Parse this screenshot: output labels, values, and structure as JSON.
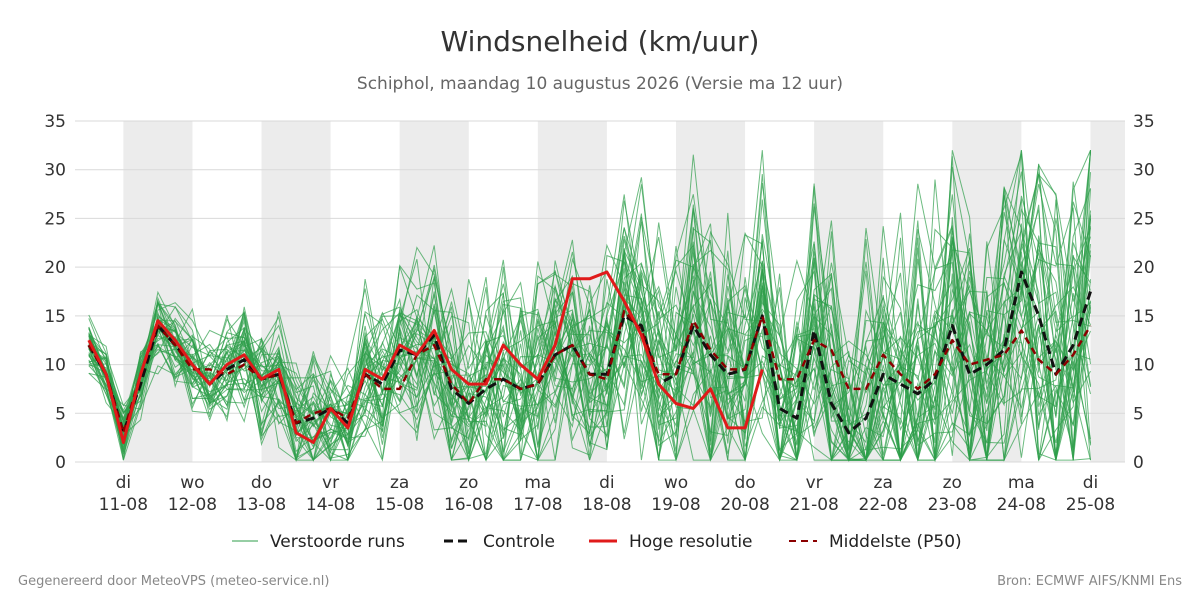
{
  "title": "Windsnelheid (km/uur)",
  "subtitle": "Schiphol, maandag 10 augustus 2026 (Versie ma 12 uur)",
  "footer": {
    "left": "Gegenereerd door MeteoVPS (meteo-service.nl)",
    "right": "Bron: ECMWF AIFS/KNMI Ens"
  },
  "colors": {
    "ensemble": "#2e9e4a",
    "control": "#111111",
    "highres": "#e01a1a",
    "median": "#8b0000",
    "band": "#ececec",
    "grid": "#d9d9d9",
    "text": "#333333"
  },
  "legend": {
    "ensemble": "Verstoorde runs",
    "control": "Controle",
    "highres": "Hoge resolutie",
    "median": "Middelste (P50)"
  },
  "chart_data": {
    "type": "line",
    "ylim": [
      0,
      35
    ],
    "y_ticks": [
      0,
      5,
      10,
      15,
      20,
      25,
      30,
      35
    ],
    "x_start_day": 10.5,
    "x_step_days": 0.25,
    "x_range_days": [
      10.3,
      25.5
    ],
    "day_labels": [
      {
        "day": 11,
        "wd": "di",
        "date": "11-08"
      },
      {
        "day": 12,
        "wd": "wo",
        "date": "12-08"
      },
      {
        "day": 13,
        "wd": "do",
        "date": "13-08"
      },
      {
        "day": 14,
        "wd": "vr",
        "date": "14-08"
      },
      {
        "day": 15,
        "wd": "za",
        "date": "15-08"
      },
      {
        "day": 16,
        "wd": "zo",
        "date": "16-08"
      },
      {
        "day": 17,
        "wd": "ma",
        "date": "17-08"
      },
      {
        "day": 18,
        "wd": "di",
        "date": "18-08"
      },
      {
        "day": 19,
        "wd": "wo",
        "date": "19-08"
      },
      {
        "day": 20,
        "wd": "do",
        "date": "20-08"
      },
      {
        "day": 21,
        "wd": "vr",
        "date": "21-08"
      },
      {
        "day": 22,
        "wd": "za",
        "date": "22-08"
      },
      {
        "day": 23,
        "wd": "zo",
        "date": "23-08"
      },
      {
        "day": 24,
        "wd": "ma",
        "date": "24-08"
      },
      {
        "day": 25,
        "wd": "di",
        "date": "25-08"
      }
    ],
    "series": [
      {
        "name": "Controle",
        "values": [
          12,
          9,
          3,
          8,
          14,
          12,
          10,
          8,
          9.5,
          10.5,
          8.5,
          9,
          4,
          4.5,
          5.5,
          4,
          9,
          8,
          11.5,
          11,
          13,
          7.5,
          6,
          7.5,
          8.5,
          7.5,
          8,
          11,
          12,
          9,
          9,
          15,
          14,
          8,
          9,
          14,
          11,
          9,
          9.5,
          15,
          5.5,
          4.5,
          13.5,
          6,
          3,
          4.5,
          9,
          8,
          7,
          8.5,
          14,
          9,
          10,
          11.5,
          19.5,
          15,
          9,
          12,
          17.5
        ]
      },
      {
        "name": "Hoge resolutie",
        "values": [
          12.5,
          9,
          2,
          9,
          14.5,
          12.5,
          10,
          8,
          10,
          11,
          8.5,
          9.5,
          3,
          2,
          5.5,
          3.5,
          9.5,
          8.5,
          12,
          11,
          13.5,
          9.5,
          8,
          8,
          12,
          10,
          8.5,
          12,
          18.8,
          18.8,
          19.5,
          16.5,
          13,
          8,
          6,
          5.5,
          7.5,
          3.5,
          3.5,
          9.5
        ]
      },
      {
        "name": "Middelste (P50)",
        "values": [
          12,
          9,
          3,
          9,
          14,
          12,
          9.5,
          9.5,
          9,
          10,
          8.5,
          9,
          4,
          5,
          5.5,
          4.5,
          9,
          7.5,
          7.5,
          11,
          12,
          8,
          6,
          8.5,
          8.5,
          7.5,
          8,
          11,
          12,
          9,
          8.5,
          15.5,
          13.5,
          9,
          9,
          14.5,
          11.5,
          9.5,
          9.5,
          15,
          8.5,
          8.5,
          12.5,
          11.5,
          7.5,
          7.5,
          11,
          9,
          7.5,
          9,
          12.5,
          10,
          10.5,
          11,
          13.5,
          10.5,
          9,
          11,
          14
        ]
      }
    ]
  }
}
